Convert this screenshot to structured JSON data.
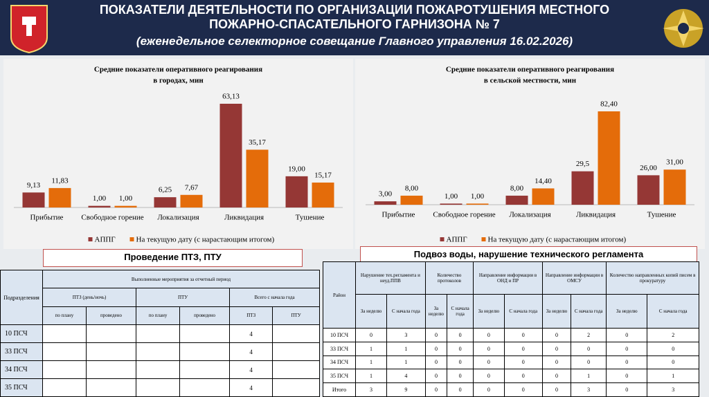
{
  "header": {
    "title": [
      "ПОКАЗАТЕЛИ ДЕЯТЕЛЬНОСТИ ПО ОРГАНИЗАЦИИ ПОЖАРОТУШЕНИЯ МЕСТНОГО",
      "ПОЖАРНО-СПАСАТЕЛЬНОГО ГАРНИЗОНА № 7"
    ],
    "subtitle": "(еженедельное селекторное совещание Главного управления 16.02.2026)"
  },
  "chart_data": [
    {
      "type": "bar",
      "title": [
        "Средние показатели оперативного реагирования",
        "в городах, мин"
      ],
      "categories": [
        "Прибытие",
        "Свободное горение",
        "Локализация",
        "Ликвидация",
        "Тушение"
      ],
      "series": [
        {
          "name": "АППГ",
          "color": "#953735",
          "values": [
            9.13,
            1.0,
            6.25,
            63.13,
            19.0
          ],
          "value_labels": [
            "9,13",
            "1,00",
            "6,25",
            "63,13",
            "19,00"
          ]
        },
        {
          "name": "На текущую дату (с нарастающим итогом)",
          "color": "#e46c0a",
          "values": [
            11.83,
            1.0,
            7.67,
            35.17,
            15.17
          ],
          "value_labels": [
            "11,83",
            "1,00",
            "7,67",
            "35,17",
            "15,17"
          ]
        }
      ],
      "legend": "bottom"
    },
    {
      "type": "bar",
      "title": [
        "Средние показатели оперативного реагирования",
        "в сельской местности, мин"
      ],
      "categories": [
        "Прибытие",
        "Свободное горение",
        "Локализация",
        "Ликвидация",
        "Тушение"
      ],
      "series": [
        {
          "name": "АППГ",
          "color": "#953735",
          "values": [
            3.0,
            1.0,
            8.0,
            29.5,
            26.0
          ],
          "value_labels": [
            "3,00",
            "1,00",
            "8,00",
            "29,5",
            "26,00"
          ]
        },
        {
          "name": "На текущую дату (с нарастающим итогом)",
          "color": "#e46c0a",
          "values": [
            8.0,
            1.0,
            14.4,
            82.4,
            31.0
          ],
          "value_labels": [
            "8,00",
            "1,00",
            "14,40",
            "82,40",
            "31,00"
          ]
        }
      ],
      "legend": "bottom"
    }
  ],
  "table_ptz": {
    "title": "Проведение ПТЗ, ПТУ",
    "header": {
      "unit": "Подразделения",
      "period": "Выполненные мероприятия за отчетный период",
      "groups": [
        "ПТЗ (день/ночь)",
        "ПТУ",
        "Всего с начала года"
      ],
      "subheaders": [
        "по плану",
        "проведено",
        "по плану",
        "проведено",
        "ПТЗ",
        "ПТУ"
      ]
    },
    "rows": [
      {
        "name": "10 ПСЧ",
        "ptz_total": 4
      },
      {
        "name": "33 ПСЧ",
        "ptz_total": 4
      },
      {
        "name": "34 ПСЧ",
        "ptz_total": 4
      },
      {
        "name": "35 ПСЧ",
        "ptz_total": 4
      }
    ]
  },
  "table_water": {
    "title": "Подвоз воды, нарушение технического регламента",
    "header": {
      "district": "Район",
      "groups": [
        "Нарушение тех.регламента и неуд.ППВ",
        "Количество протоколов",
        "Направление информации в ОНД и ПР",
        "Направление информации в ОМСУ",
        "Количество направленных копий писем в прокуратуру"
      ],
      "subheaders": [
        "За неделю",
        "С начала года",
        "За неделю",
        "С начала года",
        "За неделю",
        "С начала года",
        "За неделю",
        "С начала года",
        "За неделю",
        "С начала года"
      ]
    },
    "rows": [
      {
        "name": "10 ПСЧ",
        "values": [
          0,
          3,
          0,
          0,
          0,
          0,
          0,
          2,
          0,
          2
        ]
      },
      {
        "name": "33 ПСЧ",
        "values": [
          1,
          1,
          0,
          0,
          0,
          0,
          0,
          0,
          0,
          0
        ]
      },
      {
        "name": "34 ПСЧ",
        "values": [
          1,
          1,
          0,
          0,
          0,
          0,
          0,
          0,
          0,
          0
        ]
      },
      {
        "name": "35 ПСЧ",
        "values": [
          1,
          4,
          0,
          0,
          0,
          0,
          0,
          1,
          0,
          1
        ]
      },
      {
        "name": "Итого",
        "values": [
          3,
          9,
          0,
          0,
          0,
          0,
          0,
          3,
          0,
          3
        ]
      }
    ]
  }
}
